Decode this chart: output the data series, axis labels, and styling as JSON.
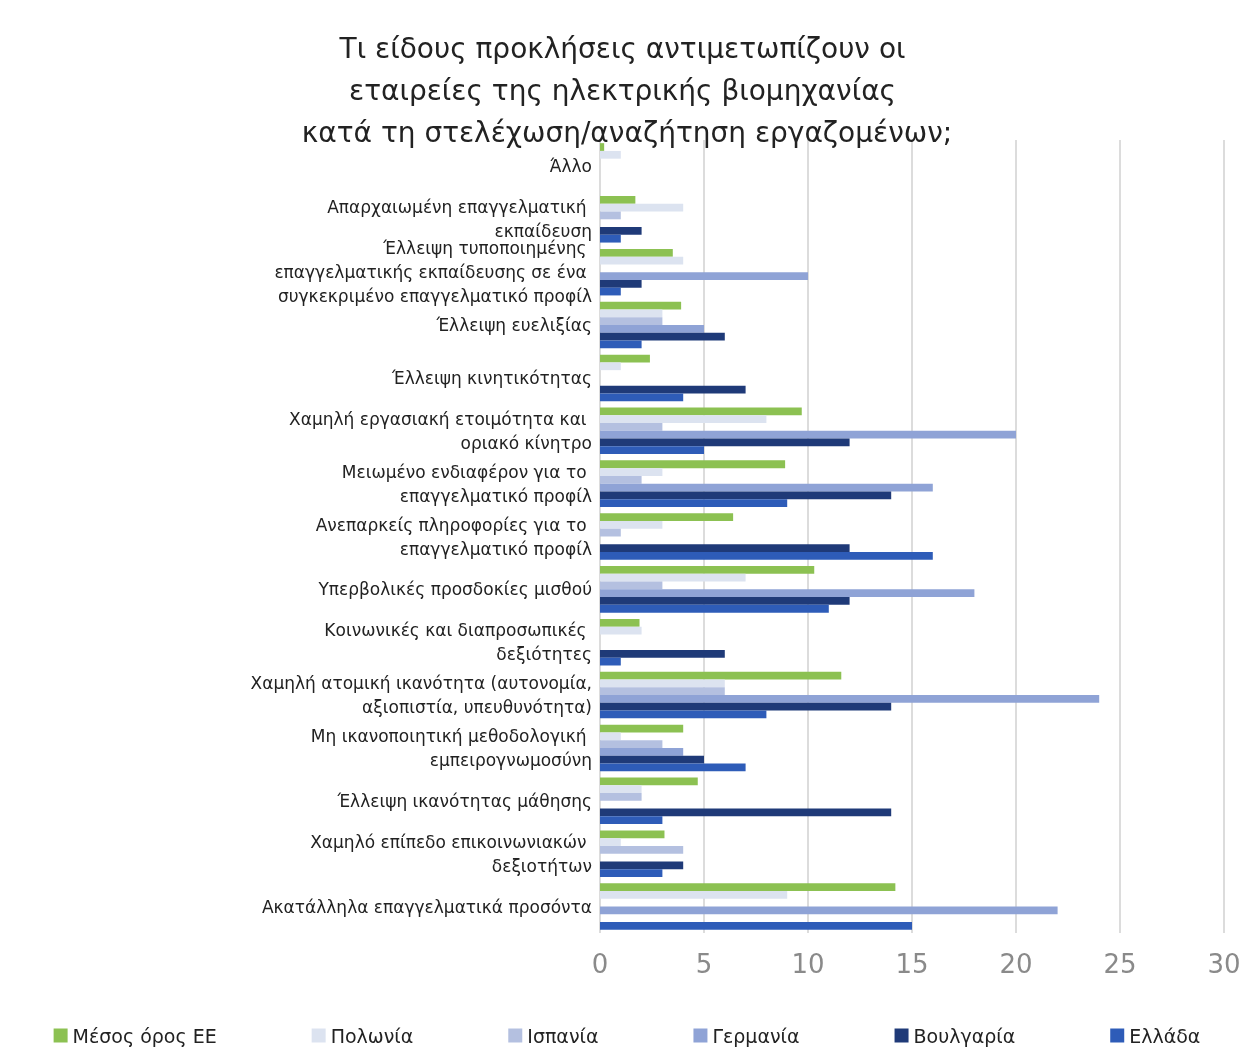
{
  "chart_data": {
    "type": "bar",
    "orientation": "horizontal",
    "title": "Τι είδους προκλήσεις αντιμετωπίζουν οι εταιρείες της ηλεκτρικής βιομηχανίας κατά τη στελέχωση/αναζήτηση εργαζομένων;",
    "categories": [
      "Άλλο",
      "Απαρχαιωμένη επαγγελματική εκπαίδευση",
      "Έλλειψη τυποποιημένης επαγγελματικής εκπαίδευσης σε ένα συγκεκριμένο επαγγελματικό προφίλ",
      "Έλλειψη ευελιξίας",
      "Έλλειψη κινητικότητας",
      "Χαμηλή εργασιακή ετοιμότητα και οριακό κίνητρο",
      "Μειωμένο ενδιαφέρον για το επαγγελματικό προφίλ",
      "Ανεπαρκείς πληροφορίες για το επαγγελματικό προφίλ",
      "Υπερβολικές προσδοκίες μισθού",
      "Κοινωνικές και διαπροσωπικές δεξιότητες",
      "Χαμηλή ατομική ικανότητα (αυτονομία, αξιοπιστία, υπευθυνότητα)",
      "Μη ικανοποιητική μεθοδολογική εμπειρογνωμοσύνη",
      "Έλλειψη ικανότητας μάθησης",
      "Χαμηλό επίπεδο επικοινωνιακών δεξιοτήτων",
      "Ακατάλληλα επαγγελματικά προσόντα"
    ],
    "series": [
      {
        "name": "Μέσος όρος ΕΕ",
        "color": "#8cc152",
        "values": [
          0.2,
          1.7,
          3.5,
          3.9,
          2.4,
          9.7,
          8.9,
          6.4,
          10.3,
          1.9,
          11.6,
          4,
          4.7,
          3.1,
          14.2
        ]
      },
      {
        "name": "Πολωνία",
        "color": "#dce3f0",
        "values": [
          1,
          4,
          4,
          3,
          1,
          8,
          3,
          3,
          7,
          2,
          6,
          1,
          2,
          1,
          9
        ]
      },
      {
        "name": "Ισπανία",
        "color": "#b4c0e0",
        "values": [
          0,
          1,
          0,
          3,
          0,
          3,
          2,
          1,
          3,
          0,
          6,
          3,
          2,
          4,
          0
        ]
      },
      {
        "name": "Γερμανία",
        "color": "#8fa3d6",
        "values": [
          0,
          0,
          10,
          5,
          0,
          20,
          16,
          0,
          18,
          0,
          24,
          4,
          0,
          0,
          22
        ]
      },
      {
        "name": "Βουλγαρία",
        "color": "#1f3a78",
        "values": [
          0,
          2,
          2,
          6,
          7,
          12,
          14,
          12,
          12,
          6,
          14,
          5,
          14,
          4,
          0
        ]
      },
      {
        "name": "Ελλάδα",
        "color": "#2e5cb8",
        "values": [
          0,
          1,
          1,
          2,
          4,
          5,
          9,
          16,
          11,
          1,
          8,
          7,
          3,
          3,
          15
        ]
      }
    ],
    "xlim": [
      0,
      30
    ],
    "xticks": [
      0,
      5,
      10,
      15,
      20,
      25,
      30
    ],
    "grid": "x",
    "legend": "bottom"
  }
}
